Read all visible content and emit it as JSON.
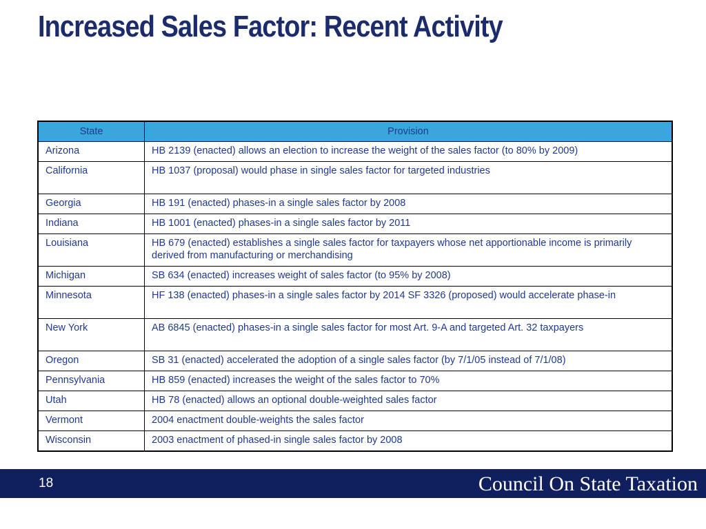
{
  "slide": {
    "title": "Increased Sales Factor: Recent Activity"
  },
  "table": {
    "headers": {
      "state": "State",
      "provision": "Provision"
    },
    "rows": [
      {
        "state": "Arizona",
        "provision": "HB 2139 (enacted) allows an election to increase the weight of the sales factor (to 80% by 2009)"
      },
      {
        "state": "California",
        "provision": "HB 1037 (proposal) would phase in single sales factor for targeted industries"
      },
      {
        "state": "Georgia",
        "provision": "HB 191 (enacted) phases-in a single sales factor by 2008"
      },
      {
        "state": "Indiana",
        "provision": "HB 1001 (enacted) phases-in a single sales factor by 2011"
      },
      {
        "state": "Louisiana",
        "provision": "HB 679 (enacted) establishes a single sales factor for taxpayers whose net apportionable income is primarily derived from manufacturing or merchandising"
      },
      {
        "state": "Michigan",
        "provision": "SB 634 (enacted) increases weight of sales factor (to 95% by 2008)"
      },
      {
        "state": "Minnesota",
        "provision": "HF 138 (enacted) phases-in a single sales factor by 2014  SF 3326 (proposed) would accelerate phase-in"
      },
      {
        "state": "New York",
        "provision": "AB 6845 (enacted) phases-in a single sales factor for most Art. 9-A and targeted Art. 32 taxpayers"
      },
      {
        "state": "Oregon",
        "provision": "SB 31 (enacted) accelerated the adoption of a single sales factor (by 7/1/05 instead of 7/1/08)"
      },
      {
        "state": "Pennsylvania",
        "provision": "HB 859 (enacted) increases the weight of the sales factor to 70%"
      },
      {
        "state": "Utah",
        "provision": "HB 78 (enacted) allows an optional double-weighted sales factor"
      },
      {
        "state": "Vermont",
        "provision": "2004 enactment double-weights the sales factor"
      },
      {
        "state": "Wisconsin",
        "provision": "2003 enactment of phased-in single sales factor by 2008"
      }
    ]
  },
  "footer": {
    "page_number": "18",
    "organization": "Council On State Taxation"
  },
  "colors": {
    "title": "#1b2b6b",
    "header_fill": "#3aa6de",
    "table_text": "#1f3a8a",
    "footer_bar": "#10205e"
  }
}
